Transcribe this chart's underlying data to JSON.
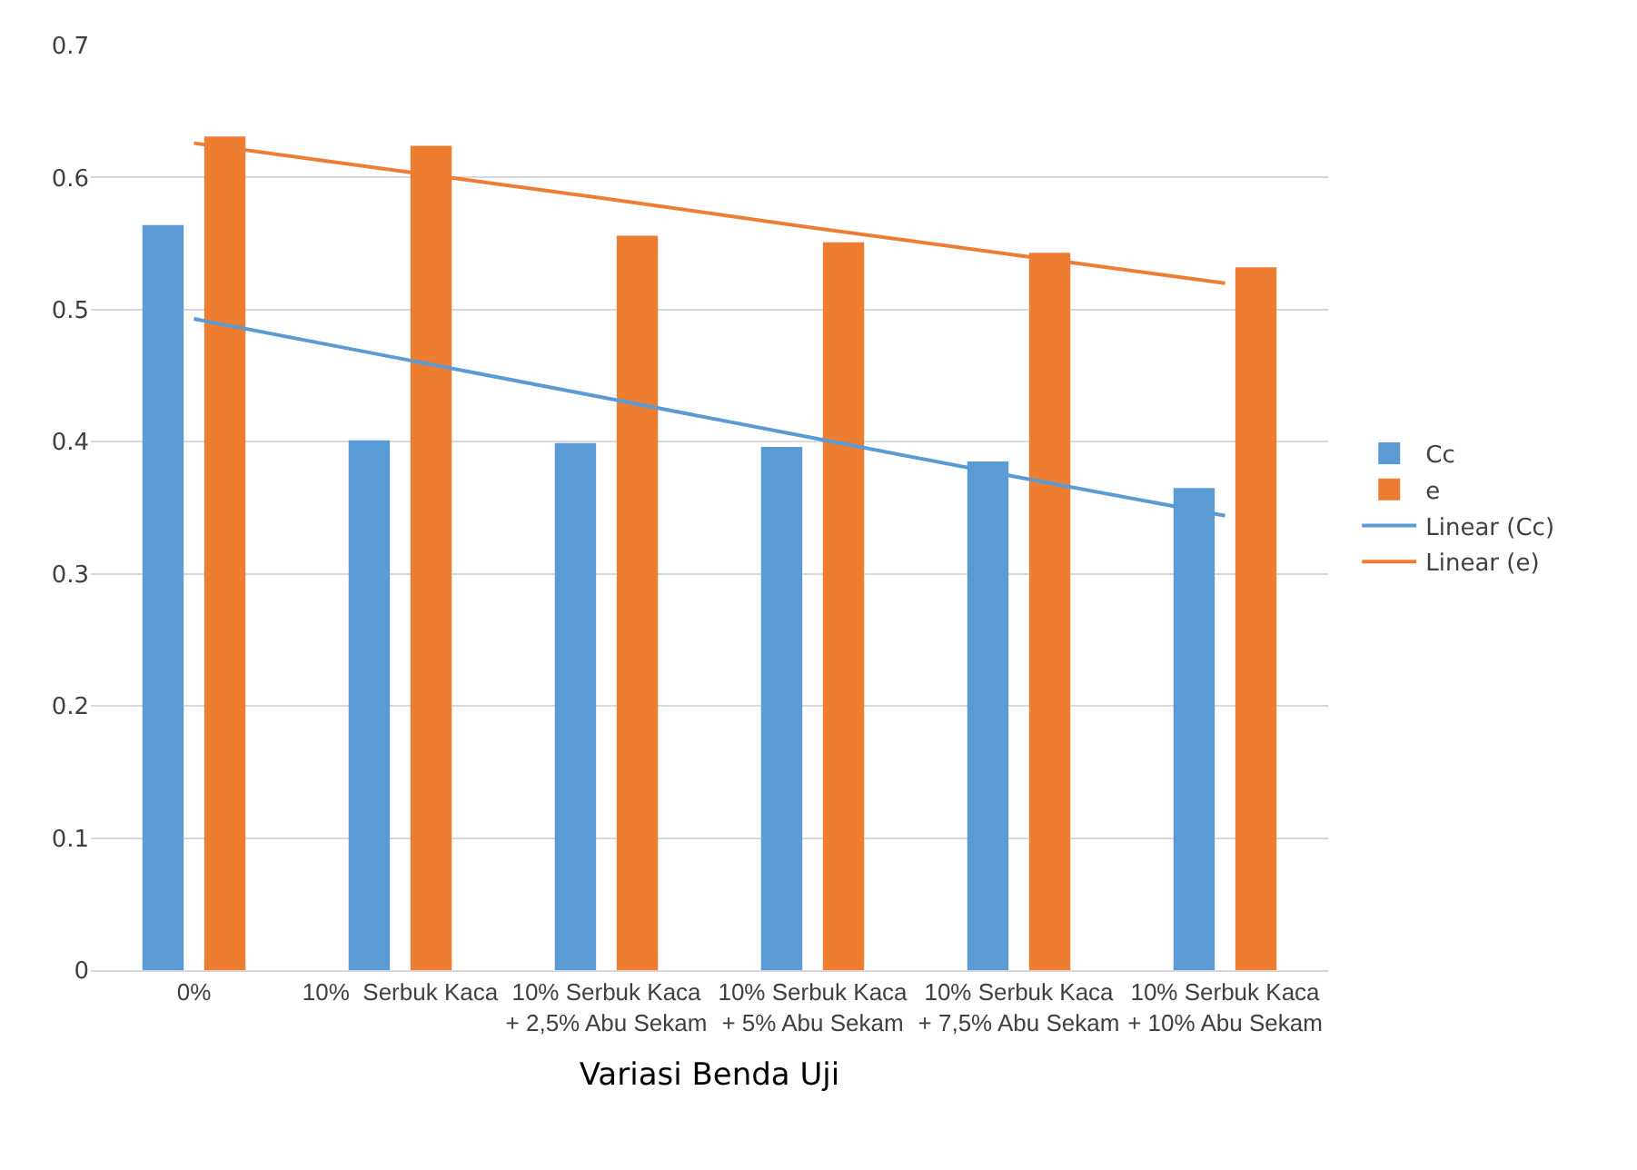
{
  "chart_data": {
    "type": "bar",
    "xlabel": "Variasi Benda Uji",
    "categories": [
      "0%",
      "10%  Serbuk Kaca",
      "10% Serbuk Kaca + 2,5% Abu Sekam",
      "10% Serbuk Kaca + 5% Abu Sekam",
      "10% Serbuk Kaca + 7,5% Abu Sekam",
      "10% Serbuk Kaca + 10% Abu Sekam"
    ],
    "series": [
      {
        "name": "Cc",
        "color": "#5b9bd5",
        "values": [
          0.564,
          0.401,
          0.399,
          0.396,
          0.385,
          0.365
        ]
      },
      {
        "name": "e",
        "color": "#ed7d31",
        "values": [
          0.631,
          0.624,
          0.556,
          0.551,
          0.543,
          0.532
        ]
      },
      {
        "name": "Linear (Cc)",
        "type": "line",
        "color": "#5b9bd5",
        "values": [
          0.493,
          0.463,
          0.433,
          0.403,
          0.373,
          0.344
        ]
      },
      {
        "name": "Linear (e)",
        "type": "line",
        "color": "#ed7d31",
        "values": [
          0.626,
          0.605,
          0.584,
          0.562,
          0.541,
          0.52
        ]
      }
    ],
    "ylim": [
      0,
      0.7
    ],
    "yticks": [
      0,
      0.1,
      0.2,
      0.3,
      0.4,
      0.5,
      0.6,
      0.7
    ],
    "grid": "y",
    "legend": "right"
  }
}
